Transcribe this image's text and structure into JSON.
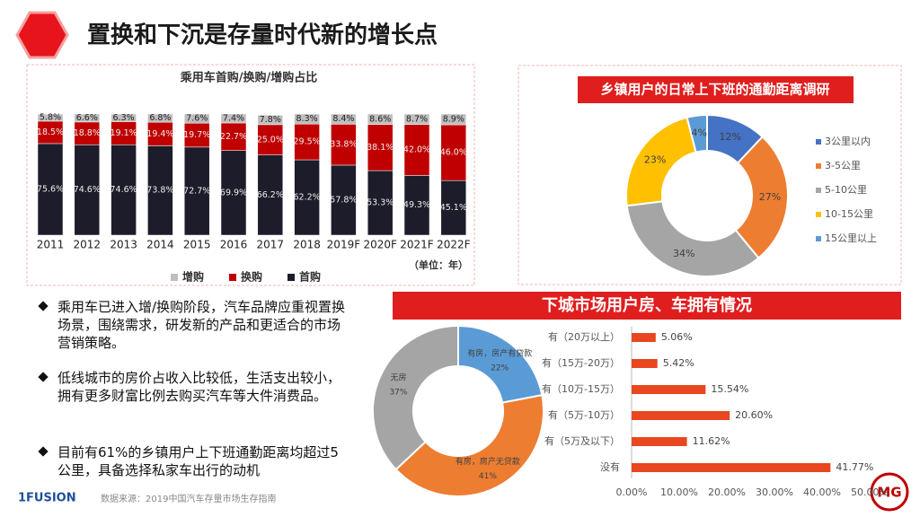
{
  "header": {
    "title": "置换和下沉是存量时代新的增长点"
  },
  "bullets": [
    "乘用车已进入增/换购阶段，汽车品牌应重视置换场景，围绕需求，研发新的产品和更适合的市场营销策略。",
    "低线城市的房价占收入比较低，生活支出较小，拥有更多财富比例去购买汽车等大件消费品。",
    "目前有61%的乡镇用户上下班通勤距离均超过5公里，具备选择私家车出行的动机"
  ],
  "section_title": "下城市场用户房、车拥有情况",
  "source": "数据来源：2019中国汽车存量市场生存指南",
  "logos": [
    "1FUSION",
    "MG"
  ],
  "chart_data": [
    {
      "type": "bar",
      "stacked": true,
      "title": "乘用车首购/换购/增购占比",
      "unit_note": "（单位：年）",
      "categories": [
        "2011",
        "2012",
        "2013",
        "2014",
        "2015",
        "2016",
        "2017",
        "2018",
        "2019F",
        "2020F",
        "2021F",
        "2022F"
      ],
      "series": [
        {
          "name": "增购",
          "color": "#bfbfbf",
          "values": [
            5.8,
            6.6,
            6.3,
            6.8,
            7.6,
            7.4,
            7.8,
            8.3,
            8.4,
            8.6,
            8.7,
            8.9
          ],
          "value_labels": [
            "5.8%",
            "6.6%",
            "6.3%",
            "6.8%",
            "7.6%",
            "7.4%",
            "7.8%",
            "8.3%",
            "8.4%",
            "8.6%",
            "8.7%",
            "8.9%"
          ]
        },
        {
          "name": "换购",
          "color": "#c00000",
          "values": [
            18.5,
            18.8,
            19.1,
            19.4,
            19.7,
            22.7,
            25.0,
            29.5,
            33.8,
            38.1,
            42.0,
            46.0
          ],
          "value_labels": [
            "18.5%",
            "18.8%",
            "19.1%",
            "19.4%",
            "19.7%",
            "22.7%",
            "25.0%",
            "29.5%",
            "33.8%",
            "38.1%",
            "42.0%",
            "46.0%"
          ]
        },
        {
          "name": "首购",
          "color": "#1c1c2a",
          "values": [
            75.6,
            74.6,
            74.6,
            73.8,
            72.7,
            69.9,
            66.2,
            62.2,
            57.8,
            53.3,
            49.3,
            45.1
          ],
          "value_labels": [
            "75.6%",
            "74.6%",
            "74.6%",
            "73.8%",
            "72.7%",
            "69.9%",
            "66.2%",
            "62.2%",
            "57.8%",
            "53.3%",
            "49.3%",
            "45.1%"
          ]
        }
      ]
    },
    {
      "type": "pie",
      "donut": true,
      "title": "乡镇用户的日常上下班的通勤距离调研",
      "categories": [
        "3公里以内",
        "3-5公里",
        "5-10公里",
        "10-15公里",
        "15公里以上"
      ],
      "values": [
        12,
        27,
        34,
        23,
        4
      ],
      "value_labels": [
        "12%",
        "27%",
        "34%",
        "23%",
        "4%"
      ],
      "colors": [
        "#4472c4",
        "#ed7d31",
        "#a5a5a5",
        "#ffc000",
        "#5b9bd5"
      ],
      "legend": "right"
    },
    {
      "type": "pie",
      "donut": true,
      "categories": [
        "有房，房产有贷款",
        "有房，房产无贷款",
        "无房"
      ],
      "values": [
        22,
        41,
        37
      ],
      "value_labels": [
        "22%",
        "41%",
        "37%"
      ],
      "colors": [
        "#5b9bd5",
        "#ed7d31",
        "#a5a5a5"
      ]
    },
    {
      "type": "bar",
      "orientation": "horizontal",
      "color": "#e8471f",
      "categories": [
        "有（20万以上）",
        "有（15万-20万）",
        "有（10万-15万）",
        "有（5万-10万）",
        "有（5万及以下）",
        "没有"
      ],
      "values": [
        5.06,
        5.42,
        15.54,
        20.6,
        11.62,
        41.77
      ],
      "value_labels": [
        "5.06%",
        "5.42%",
        "15.54%",
        "20.60%",
        "11.62%",
        "41.77%"
      ],
      "xlim": [
        0,
        50
      ],
      "xticks": [
        {
          "value": 0,
          "label": "0.00%"
        },
        {
          "value": 10,
          "label": "10.00%"
        },
        {
          "value": 20,
          "label": "20.00%"
        },
        {
          "value": 30,
          "label": "30.00%"
        },
        {
          "value": 40,
          "label": "40.00%"
        },
        {
          "value": 50,
          "label": "50.00%"
        }
      ]
    }
  ]
}
